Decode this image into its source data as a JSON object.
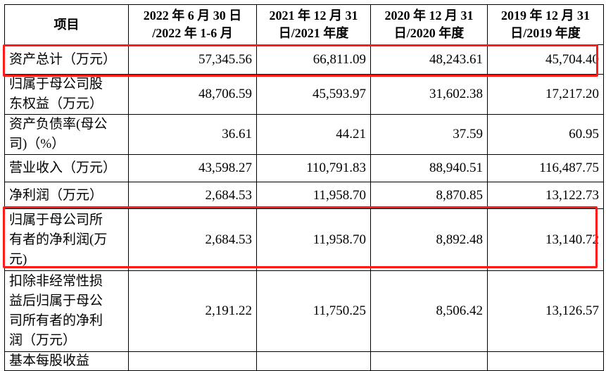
{
  "table": {
    "headers": [
      "项目",
      "2022 年 6 月 30 日\n/2022 年 1-6 月",
      "2021 年 12 月 31\n日/2021 年度",
      "2020 年 12 月 31\n日/2020 年度",
      "2019 年 12 月 31\n日/2019 年度"
    ],
    "rows": [
      {
        "label": "资产总计（万元）",
        "values": [
          "57,345.56",
          "66,811.09",
          "48,243.61",
          "45,704.40"
        ],
        "highlighted": true
      },
      {
        "label": "归属于母公司股\n东权益（万元）",
        "values": [
          "48,706.59",
          "45,593.97",
          "31,602.38",
          "17,217.20"
        ],
        "highlighted": false
      },
      {
        "label": "资产负债率(母公\n司)（%）",
        "values": [
          "36.61",
          "44.21",
          "37.59",
          "60.95"
        ],
        "highlighted": false
      },
      {
        "label": "营业收入（万元）",
        "values": [
          "43,598.27",
          "110,791.83",
          "88,940.51",
          "116,487.75"
        ],
        "highlighted": false
      },
      {
        "label": "净利润（万元）",
        "values": [
          "2,684.53",
          "11,958.70",
          "8,870.85",
          "13,122.73"
        ],
        "highlighted": false
      },
      {
        "label": "归属于母公司所\n有者的净利润(万\n元)",
        "values": [
          "2,684.53",
          "11,958.70",
          "8,892.48",
          "13,140.72"
        ],
        "highlighted": true
      },
      {
        "label": "扣除非经常性损\n益后归属于母公\n司所有者的净利\n润（万元）",
        "values": [
          "2,191.22",
          "11,750.25",
          "8,506.42",
          "13,126.57"
        ],
        "highlighted": false
      }
    ],
    "partial_row_label": "基本每股收益"
  },
  "colors": {
    "highlight": "#ff1a1a",
    "border": "#000000",
    "text": "#000000"
  }
}
